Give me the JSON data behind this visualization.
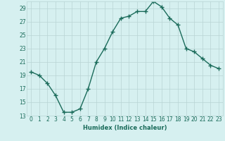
{
  "x": [
    0,
    1,
    2,
    3,
    4,
    5,
    6,
    7,
    8,
    9,
    10,
    11,
    12,
    13,
    14,
    15,
    16,
    17,
    18,
    19,
    20,
    21,
    22,
    23
  ],
  "y": [
    19.5,
    19.0,
    17.8,
    16.0,
    13.5,
    13.5,
    14.0,
    17.0,
    21.0,
    23.0,
    25.5,
    27.5,
    27.8,
    28.5,
    28.5,
    30.0,
    29.2,
    27.5,
    26.5,
    23.0,
    22.5,
    21.5,
    20.5,
    20.0
  ],
  "xlabel": "Humidex (Indice chaleur)",
  "ylabel": "",
  "xlim": [
    -0.5,
    23.5
  ],
  "ylim": [
    13,
    30
  ],
  "yticks": [
    13,
    15,
    17,
    19,
    21,
    23,
    25,
    27,
    29
  ],
  "xticks": [
    0,
    1,
    2,
    3,
    4,
    5,
    6,
    7,
    8,
    9,
    10,
    11,
    12,
    13,
    14,
    15,
    16,
    17,
    18,
    19,
    20,
    21,
    22,
    23
  ],
  "line_color": "#1a6b5a",
  "marker": "+",
  "marker_size": 4,
  "linewidth": 1.0,
  "bg_color": "#d6f0f0",
  "grid_color": "#b8d4d4",
  "label_fontsize": 6,
  "tick_fontsize": 5.5
}
